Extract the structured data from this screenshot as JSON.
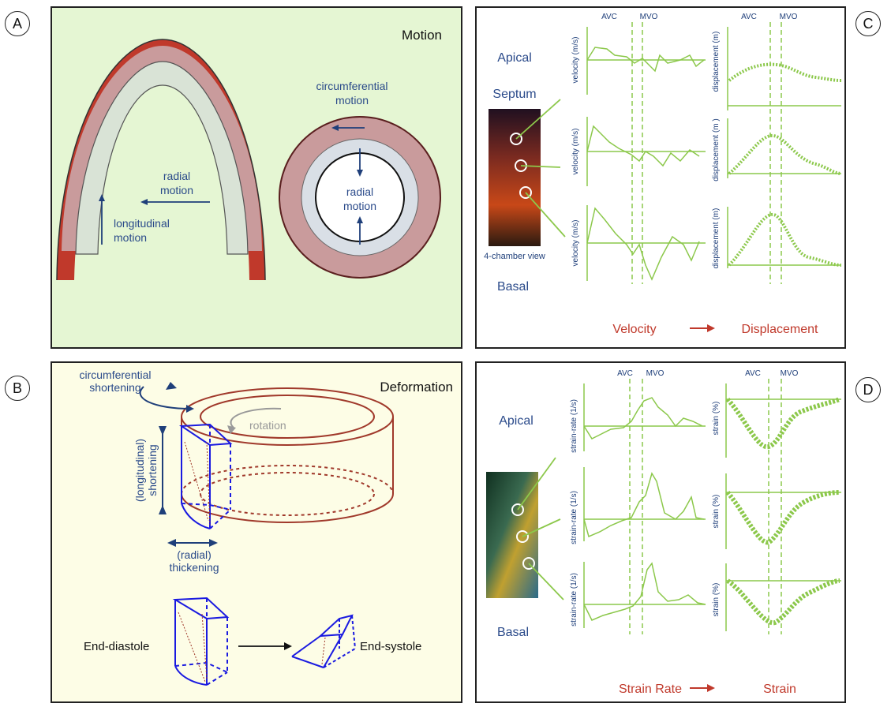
{
  "badges": {
    "a": "A",
    "b": "B",
    "c": "C",
    "d": "D"
  },
  "panel_a": {
    "title": "Motion",
    "circumferential_1": "circumferential",
    "circumferential_2": "motion",
    "radial_left_1": "radial",
    "radial_left_2": "motion",
    "radial_center_1": "radial",
    "radial_center_2": "motion",
    "longitudinal_1": "longitudinal",
    "longitudinal_2": "motion"
  },
  "panel_b": {
    "title": "Deformation",
    "circ_short_1": "circumferential",
    "circ_short_2": "shortening",
    "rotation": "rotation",
    "long_short_1": "(longitudinal)",
    "long_short_2": "shortening",
    "radial_thick_1": "(radial)",
    "radial_thick_2": "thickening",
    "end_diastole": "End-diastole",
    "end_systole": "End-systole"
  },
  "panel_c": {
    "avc": "AVC",
    "mvo": "MVO",
    "apical": "Apical",
    "septum": "Septum",
    "basal": "Basal",
    "view": "4-chamber view",
    "velocity_axis": "velocity (m/s)",
    "displacement_axis_1": "displacement (m)",
    "displacement_axis_2": "displacement (m )",
    "displacement_axis_3": "displacement (m)",
    "footer_left": "Velocity",
    "footer_right": "Displacement"
  },
  "panel_d": {
    "avc": "AVC",
    "mvo": "MVO",
    "apical": "Apical",
    "basal": "Basal",
    "sr_axis": "strain-rate (1/s)",
    "strain_axis": "strain (%)",
    "footer_left": "Strain Rate",
    "footer_right": "Strain"
  },
  "colors": {
    "green_bg": "#e5f6d3",
    "yellow_bg": "#fdfde6",
    "wall_red": "#c0392b",
    "wall_pink": "#cfa0a0",
    "trace_green": "#8cc84b",
    "label_navy": "#1f3f7a"
  }
}
